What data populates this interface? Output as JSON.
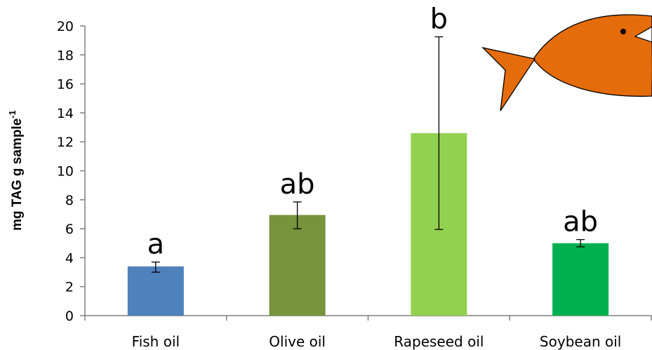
{
  "chart_data": {
    "type": "bar",
    "categories": [
      "Fish oil",
      "Olive oil",
      "Rapeseed oil",
      "Soybean oil"
    ],
    "values": [
      3.4,
      6.95,
      12.6,
      5.0
    ],
    "error_low": [
      3.0,
      6.0,
      5.95,
      4.75
    ],
    "error_high": [
      3.7,
      7.85,
      19.25,
      5.25
    ],
    "significance_labels": [
      "a",
      "ab",
      "b",
      "ab"
    ],
    "colors": [
      "#4f81bd",
      "#77933c",
      "#92d050",
      "#00b050"
    ],
    "ylabel": "mg TAG g sample-1",
    "ylabel_main": "mg TAG g sample",
    "ylabel_superscript": "-1",
    "xlabel": "",
    "title": "",
    "ylim": [
      0,
      20
    ],
    "yticks": [
      "0",
      "2",
      "4",
      "6",
      "8",
      "10",
      "12",
      "14",
      "16",
      "18",
      "20"
    ],
    "grid": false,
    "legend": "none",
    "decoration": "orange-fish-icon",
    "decoration_color": "#e46c0a"
  }
}
